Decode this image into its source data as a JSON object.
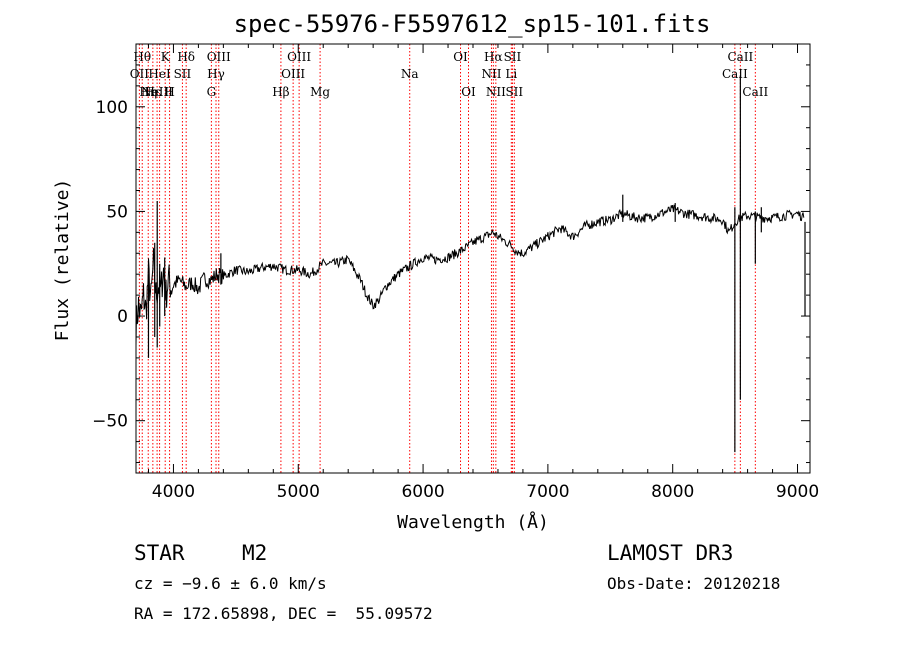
{
  "chart_data": {
    "type": "line",
    "title": "spec-55976-F5597612_sp15-101.fits",
    "xlabel": "Wavelength (Å)",
    "ylabel": "Flux (relative)",
    "xlim": [
      3700,
      9100
    ],
    "ylim": [
      -75,
      130
    ],
    "xticks": [
      {
        "value": 4000,
        "label": "4000"
      },
      {
        "value": 5000,
        "label": "5000"
      },
      {
        "value": 6000,
        "label": "6000"
      },
      {
        "value": 7000,
        "label": "7000"
      },
      {
        "value": 8000,
        "label": "8000"
      },
      {
        "value": 9000,
        "label": "9000"
      }
    ],
    "yticks": [
      {
        "value": -50,
        "label": "−50"
      },
      {
        "value": 0,
        "label": "0"
      },
      {
        "value": 50,
        "label": "50"
      },
      {
        "value": 100,
        "label": "100"
      }
    ],
    "line_color": "#ff0000",
    "spectrum_color": "#000000",
    "spectrum": {
      "x": [
        3700,
        3720,
        3740,
        3760,
        3780,
        3800,
        3820,
        3840,
        3860,
        3880,
        3900,
        3920,
        3940,
        3960,
        3980,
        4000,
        4050,
        4100,
        4150,
        4200,
        4250,
        4300,
        4350,
        4400,
        4500,
        4600,
        4700,
        4800,
        4900,
        5000,
        5100,
        5200,
        5300,
        5400,
        5450,
        5500,
        5550,
        5600,
        5650,
        5700,
        5800,
        5900,
        6000,
        6100,
        6200,
        6300,
        6400,
        6500,
        6560,
        6600,
        6650,
        6700,
        6750,
        6800,
        6900,
        7000,
        7100,
        7200,
        7300,
        7400,
        7500,
        7600,
        7700,
        7800,
        7900,
        8000,
        8100,
        8200,
        8300,
        8400,
        8450,
        8500,
        8550,
        8600,
        8700,
        8800,
        8900,
        9000,
        9050
      ],
      "y": [
        -5,
        5,
        0,
        10,
        2,
        20,
        8,
        25,
        10,
        15,
        12,
        22,
        10,
        18,
        14,
        15,
        17,
        14,
        16,
        13,
        18,
        17,
        20,
        19,
        22,
        21,
        23,
        24,
        22,
        22,
        20,
        25,
        25,
        27,
        22,
        17,
        10,
        5,
        8,
        14,
        20,
        24,
        28,
        27,
        28,
        31,
        35,
        38,
        40,
        38,
        36,
        34,
        31,
        30,
        34,
        38,
        42,
        38,
        43,
        45,
        46,
        49,
        47,
        47,
        49,
        51,
        49,
        48,
        47,
        46,
        40,
        45,
        47,
        48,
        47,
        47,
        48,
        49,
        47
      ]
    },
    "spikes": [
      {
        "x": 3800,
        "y1": -20,
        "y2": 20
      },
      {
        "x": 3850,
        "y1": -10,
        "y2": 35
      },
      {
        "x": 3870,
        "y1": -15,
        "y2": 55
      },
      {
        "x": 3890,
        "y1": -5,
        "y2": 25
      },
      {
        "x": 3930,
        "y1": 0,
        "y2": 28
      },
      {
        "x": 4380,
        "y1": 15,
        "y2": 30
      },
      {
        "x": 7600,
        "y1": 45,
        "y2": 58
      },
      {
        "x": 8020,
        "y1": 45,
        "y2": 54
      },
      {
        "x": 8498,
        "y1": -65,
        "y2": 52
      },
      {
        "x": 8542,
        "y1": -40,
        "y2": 115
      },
      {
        "x": 8662,
        "y1": 25,
        "y2": 50
      },
      {
        "x": 8710,
        "y1": 40,
        "y2": 52
      },
      {
        "x": 9060,
        "y1": 0,
        "y2": 45
      }
    ],
    "lines": [
      {
        "x": 3727,
        "label": "OII",
        "row": 2,
        "dx": 0
      },
      {
        "x": 3750,
        "label": "Hθ",
        "row": 1,
        "dx": 0
      },
      {
        "x": 3798,
        "label": "Hη",
        "row": 3,
        "dx": 0
      },
      {
        "x": 3835,
        "label": "Hε",
        "row": 3,
        "dx": 0
      },
      {
        "x": 3869,
        "label": "NeIII",
        "row": 3,
        "dx": 0
      },
      {
        "x": 3889,
        "label": "HeI",
        "row": 2,
        "dx": 0
      },
      {
        "x": 3934,
        "label": "K",
        "row": 1,
        "dx": 0
      },
      {
        "x": 3969,
        "label": "H",
        "row": 3,
        "dx": 0
      },
      {
        "x": 4072,
        "label": "SII",
        "row": 2,
        "dx": 0
      },
      {
        "x": 4102,
        "label": "Hδ",
        "row": 1,
        "dx": 0
      },
      {
        "x": 4304,
        "label": "G",
        "row": 3,
        "dx": 0
      },
      {
        "x": 4341,
        "label": "Hγ",
        "row": 2,
        "dx": 0
      },
      {
        "x": 4363,
        "label": "OIII",
        "row": 1,
        "dx": 0
      },
      {
        "x": 4861,
        "label": "Hβ",
        "row": 3,
        "dx": 0
      },
      {
        "x": 4959,
        "label": "OIII",
        "row": 2,
        "dx": 0
      },
      {
        "x": 5007,
        "label": "OIII",
        "row": 1,
        "dx": 0
      },
      {
        "x": 5175,
        "label": "Mg",
        "row": 3,
        "dx": 0
      },
      {
        "x": 5893,
        "label": "Na",
        "row": 2,
        "dx": 0
      },
      {
        "x": 6300,
        "label": "OI",
        "row": 1,
        "dx": 0
      },
      {
        "x": 6364,
        "label": "OI",
        "row": 3,
        "dx": 0
      },
      {
        "x": 6548,
        "label": "NII",
        "row": 2,
        "dx": 0
      },
      {
        "x": 6563,
        "label": "Hα",
        "row": 1,
        "dx": 0
      },
      {
        "x": 6583,
        "label": "NII",
        "row": 3,
        "dx": 0
      },
      {
        "x": 6707,
        "label": "Li",
        "row": 2,
        "dx": 0
      },
      {
        "x": 6716,
        "label": "SII",
        "row": 1,
        "dx": 0
      },
      {
        "x": 6731,
        "label": "SII",
        "row": 3,
        "dx": 0
      },
      {
        "x": 8498,
        "label": "CaII",
        "row": 2,
        "dx": 0
      },
      {
        "x": 8542,
        "label": "CaII",
        "row": 1,
        "dx": 0
      },
      {
        "x": 8662,
        "label": "CaII",
        "row": 3,
        "dx": 0
      }
    ]
  },
  "info": {
    "class_label": "STAR",
    "subclass": "M2",
    "survey": "LAMOST DR3",
    "cz": "cz = −9.6 ± 6.0 km/s",
    "obs_date": "Obs-Date: 20120218",
    "coords": "RA = 172.65898, DEC =  55.09572"
  }
}
